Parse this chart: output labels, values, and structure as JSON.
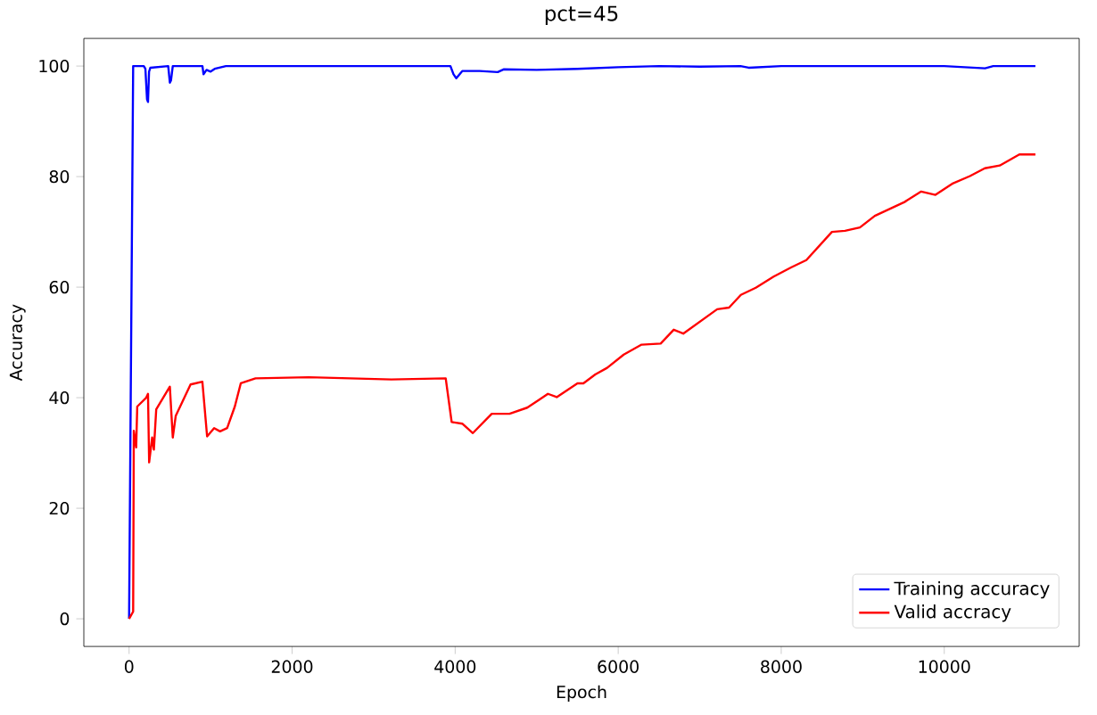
{
  "chart_data": {
    "type": "line",
    "title": "pct=45",
    "xlabel": "Epoch",
    "ylabel": "Accuracy",
    "xlim": [
      -555,
      11655
    ],
    "ylim": [
      -5,
      105
    ],
    "xticks": [
      0,
      2000,
      4000,
      6000,
      8000,
      10000
    ],
    "yticks": [
      0,
      20,
      40,
      60,
      80,
      100
    ],
    "legend": "bottom right",
    "grid": false,
    "marker": "none",
    "line_style": "solid",
    "series": [
      {
        "name": "Training accuracy",
        "color": "#0000ff",
        "x": [
          0,
          20,
          50,
          180,
          200,
          220,
          232,
          245,
          261,
          480,
          500,
          514,
          536,
          900,
          913,
          950,
          1000,
          1050,
          1188,
          3942,
          3980,
          4014,
          4087,
          4300,
          4522,
          4594,
          5000,
          5500,
          6000,
          6500,
          7000,
          7500,
          7600,
          8000,
          9000,
          10000,
          10500,
          10600,
          11118
        ],
        "values": [
          0,
          40,
          100,
          100,
          99.5,
          94,
          93.5,
          99,
          99.7,
          100,
          97,
          97.4,
          100,
          100,
          98.5,
          99.3,
          99,
          99.5,
          100,
          100,
          98.5,
          97.8,
          99.1,
          99.1,
          98.9,
          99.4,
          99.3,
          99.5,
          99.8,
          100,
          99.9,
          100,
          99.7,
          100,
          100,
          100,
          99.6,
          100,
          100
        ]
      },
      {
        "name": "Valid accracy",
        "color": "#ff0000",
        "x": [
          0,
          50,
          58,
          87,
          100,
          210,
          232,
          246,
          283,
          304,
          333,
          500,
          536,
          572,
          754,
          899,
          957,
          1043,
          1116,
          1203,
          1297,
          1370,
          1551,
          2203,
          3217,
          3884,
          3957,
          4087,
          4217,
          4449,
          4667,
          4884,
          5029,
          5138,
          5246,
          5500,
          5573,
          5719,
          5864,
          6068,
          6287,
          6521,
          6681,
          6798,
          7214,
          7360,
          7505,
          7688,
          7907,
          8126,
          8308,
          8622,
          8783,
          8965,
          9148,
          9512,
          9717,
          9892,
          10096,
          10315,
          10497,
          10680,
          10921,
          11118
        ],
        "values": [
          0,
          1.3,
          34,
          31,
          38.4,
          40,
          40.7,
          28.3,
          32.8,
          30.6,
          37.9,
          42,
          32.8,
          36.7,
          42.4,
          42.9,
          33,
          34.5,
          33.9,
          34.5,
          38.4,
          42.6,
          43.5,
          43.7,
          43.3,
          43.5,
          35.6,
          35.3,
          33.6,
          37.1,
          37.1,
          38.2,
          39.6,
          40.7,
          40.1,
          42.6,
          42.6,
          44.2,
          45.4,
          47.8,
          49.6,
          49.8,
          52.3,
          51.6,
          56,
          56.3,
          58.6,
          59.9,
          61.9,
          63.6,
          64.9,
          70,
          70.2,
          70.8,
          72.9,
          75.4,
          77.3,
          76.7,
          78.7,
          80.1,
          81.5,
          82,
          84,
          84
        ]
      }
    ]
  }
}
